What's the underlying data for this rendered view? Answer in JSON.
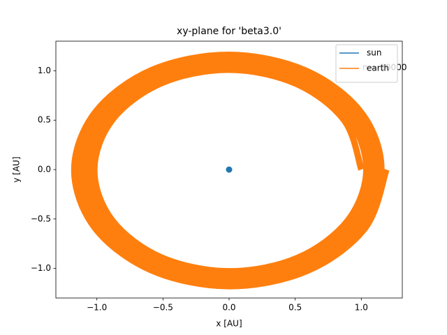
{
  "chart_data": {
    "type": "line",
    "title": "xy-plane for 'beta3.0'",
    "xlabel": "x [AU]",
    "ylabel": "y [AU]",
    "annotation": "n = 10000",
    "legend": "upper right",
    "xlim": [
      -1.31,
      1.31
    ],
    "ylim": [
      -1.3,
      1.3
    ],
    "xticks": [
      {
        "value": -1.0,
        "label": "−1.0"
      },
      {
        "value": -0.5,
        "label": "−0.5"
      },
      {
        "value": 0,
        "label": "0.0"
      },
      0.5,
      {
        "value": 1.0,
        "label": "1.0"
      }
    ],
    "yticks": [
      {
        "value": -1.0,
        "label": "−1.0"
      },
      {
        "value": -0.5,
        "label": "−0.5"
      },
      {
        "value": 0,
        "label": "0.0"
      },
      0.5,
      {
        "value": 1.0,
        "label": "1.0"
      }
    ],
    "series": [
      {
        "name": "sun",
        "color": "#1f77b4",
        "marker": "o",
        "x": [
          0
        ],
        "y": [
          0
        ]
      },
      {
        "name": "earth",
        "color": "#ff7f0e",
        "x": [
          1.0,
          0.869,
          0.503,
          0,
          -0.507,
          -0.88,
          -1.019,
          -0.885,
          -0.513,
          0,
          0.516,
          0.896,
          1.038,
          0.902,
          0.522,
          0,
          -0.526,
          -0.913,
          -1.057,
          -0.918,
          -0.532,
          0,
          0.535,
          0.929,
          1.076,
          0.934,
          0.541,
          0,
          -0.545,
          -0.946,
          -1.095,
          -0.951,
          -0.551,
          0,
          0.554,
          0.962,
          1.114,
          0.967,
          0.56,
          0,
          -0.564,
          -0.979,
          -1.133,
          -0.984,
          -0.57,
          0,
          0.573,
          0.995,
          1.152,
          1.0,
          0.579,
          0,
          -0.583,
          -1.011,
          -1.171,
          -1.017,
          -0.589,
          0,
          0.592,
          1.028,
          1.19
        ],
        "y": [
          0,
          0.501,
          0.871,
          1.01,
          0.877,
          0.508,
          0,
          -0.511,
          -0.888,
          -1.029,
          -0.894,
          -0.518,
          0,
          0.521,
          0.904,
          1.048,
          0.91,
          0.527,
          0,
          -0.53,
          -0.921,
          -1.067,
          -0.927,
          -0.537,
          0,
          0.54,
          0.937,
          1.086,
          0.943,
          0.546,
          0,
          -0.549,
          -0.953,
          -1.105,
          -0.96,
          -0.556,
          0,
          0.559,
          0.97,
          1.124,
          0.976,
          0.565,
          0,
          -0.568,
          -0.986,
          -1.143,
          -0.992,
          -0.575,
          0,
          0.578,
          1.003,
          1.162,
          1.009,
          0.584,
          0,
          -0.587,
          -1.019,
          -1.181,
          -1.025,
          -0.594,
          0
        ]
      }
    ]
  }
}
